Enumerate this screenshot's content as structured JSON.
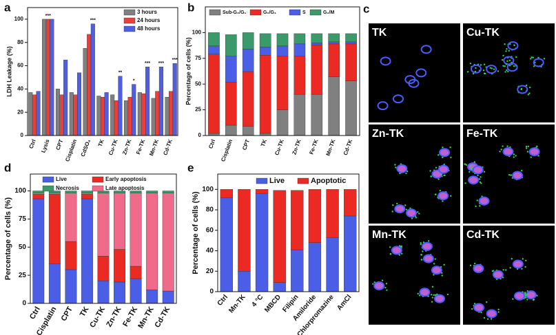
{
  "chart_data": [
    {
      "type": "bar",
      "panel_label": "a",
      "y_label": "LDH Leakage (%)",
      "categories": [
        "Ctrl",
        "Lysis",
        "CPT",
        "Cisplatin",
        "CdSO₄",
        "TK",
        "Cu-TK",
        "Zn-TK",
        "Fe-TK",
        "Mn-TK",
        "Cd-TK"
      ],
      "series": [
        {
          "name": "3 hours",
          "color": "#808080",
          "values": [
            37,
            100,
            40,
            37,
            75,
            34,
            35,
            30,
            37,
            32,
            33
          ],
          "significance": [
            null,
            null,
            null,
            null,
            null,
            null,
            null,
            null,
            null,
            null,
            null
          ]
        },
        {
          "name": "24 hours",
          "color": "#e8403a",
          "values": [
            35,
            100,
            35,
            35,
            87,
            33,
            30,
            33,
            36,
            38,
            38
          ],
          "significance": [
            null,
            "***",
            null,
            null,
            null,
            null,
            null,
            null,
            null,
            null,
            null
          ]
        },
        {
          "name": "48 hours",
          "color": "#4f5fe0",
          "values": [
            38,
            100,
            65,
            54,
            96,
            37,
            51,
            44,
            59,
            59,
            62
          ],
          "significance": [
            null,
            null,
            null,
            null,
            "***",
            null,
            "**",
            "*",
            "***",
            "***",
            "***"
          ]
        }
      ],
      "ylim": [
        0,
        110
      ],
      "yticks": [
        0,
        20,
        40,
        60,
        80,
        100
      ]
    },
    {
      "type": "stacked_bar",
      "panel_label": "b",
      "y_label": "Percentage of cells (%)",
      "categories": [
        "Ctrl",
        "Cisplatin",
        "CPT",
        "TK",
        "Cu-TK",
        "Zn-TK",
        "Fe-TK",
        "Mn-TK",
        "Cd-TK"
      ],
      "series": [
        {
          "name": "Sub-G₀/G₁",
          "color": "#808080",
          "values": [
            2,
            10,
            9,
            2,
            25,
            40,
            40,
            57,
            53
          ]
        },
        {
          "name": "G₀/G₁",
          "color": "#ec2a24",
          "values": [
            77,
            42,
            53,
            76,
            52,
            37,
            48,
            32,
            36
          ]
        },
        {
          "name": "S",
          "color": "#4a5ee6",
          "values": [
            8,
            25,
            22,
            8,
            10,
            12,
            2,
            2,
            2
          ]
        },
        {
          "name": "G₂/M",
          "color": "#3a9a6a",
          "values": [
            13,
            21,
            16,
            13,
            12,
            10,
            9,
            8,
            8
          ]
        }
      ],
      "ylim": [
        0,
        125
      ],
      "yticks": [
        0,
        25,
        50,
        75,
        100
      ]
    },
    {
      "type": "stacked_bar",
      "panel_label": "d",
      "y_label": "Percentage of cells (%)",
      "categories": [
        "Ctrl",
        "Cisplatin",
        "CPT",
        "TK",
        "Cu-TK",
        "Zn-TK",
        "Fe-TK",
        "Mn-TK",
        "Cd-TK"
      ],
      "series": [
        {
          "name": "Live",
          "color": "#4a5ee6",
          "values": [
            93,
            35,
            30,
            93,
            20,
            19,
            22,
            12,
            11
          ]
        },
        {
          "name": "Early apoptosis",
          "color": "#ec2a24",
          "values": [
            4,
            62,
            25,
            4,
            22,
            29,
            11,
            0,
            0
          ]
        },
        {
          "name": "Late apoptosis",
          "color": "#f06a8a",
          "values": [
            1,
            1,
            43,
            1,
            56,
            50,
            65,
            86,
            87
          ]
        },
        {
          "name": "Necrosis",
          "color": "#3a9a6a",
          "values": [
            2,
            2,
            2,
            2,
            2,
            2,
            2,
            2,
            2
          ]
        }
      ],
      "ylim": [
        0,
        115
      ],
      "yticks": [
        0,
        25,
        50,
        75,
        100
      ]
    },
    {
      "type": "stacked_bar",
      "panel_label": "e",
      "y_label": "Percentage of cells (%)",
      "categories": [
        "Ctrl",
        "Mn-TK",
        "4 °C",
        "MBCD",
        "Filipin",
        "Amiloride",
        "Chlorpromazine",
        "AmCl"
      ],
      "series": [
        {
          "name": "Live",
          "color": "#4a5ee6",
          "values": [
            92,
            20,
            96,
            9,
            41,
            48,
            53,
            74
          ]
        },
        {
          "name": "Apoptotic",
          "color": "#ec2a24",
          "values": [
            8,
            80,
            4,
            90,
            58,
            52,
            47,
            26
          ]
        }
      ],
      "ylim": [
        0,
        115
      ],
      "yticks": [
        0,
        20,
        40,
        60,
        80,
        100
      ]
    }
  ],
  "image_panel": {
    "panel_label": "c",
    "tiles": [
      "TK",
      "Cu-TK",
      "Zn-TK",
      "Fe-TK",
      "Mn-TK",
      "Cd-TK"
    ]
  }
}
